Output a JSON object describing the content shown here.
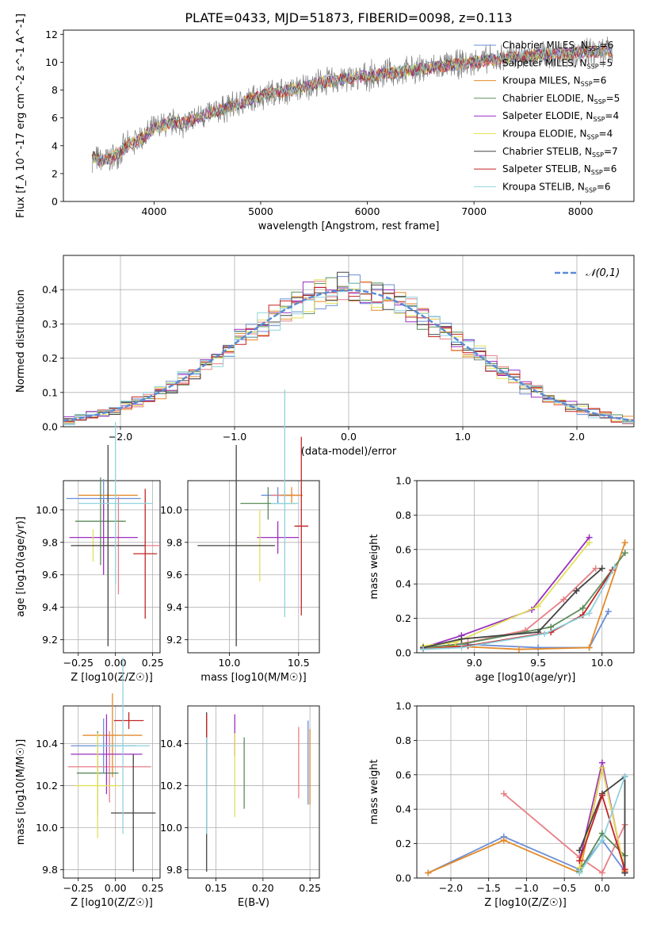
{
  "figure": {
    "title": "PLATE=0433, MJD=51873, FIBERID=0098, z=0.113"
  },
  "models": [
    {
      "name": "Chabrier MILES",
      "nssp": "6",
      "color": "#6a8fd6"
    },
    {
      "name": "Salpeter MILES",
      "nssp": "5",
      "color": "#e87f86"
    },
    {
      "name": "Kroupa MILES",
      "nssp": "6",
      "color": "#e38a2a"
    },
    {
      "name": "Chabrier ELODIE",
      "nssp": "5",
      "color": "#5b8c5a"
    },
    {
      "name": "Salpeter ELODIE",
      "nssp": "4",
      "color": "#9b2fbf"
    },
    {
      "name": "Kroupa ELODIE",
      "nssp": "4",
      "color": "#e2e05a"
    },
    {
      "name": "Chabrier STELIB",
      "nssp": "7",
      "color": "#444444"
    },
    {
      "name": "Salpeter STELIB",
      "nssp": "6",
      "color": "#c42525"
    },
    {
      "name": "Kroupa STELIB",
      "nssp": "6",
      "color": "#8fd3de"
    }
  ],
  "chart_data": [
    {
      "type": "line",
      "id": "spectrum",
      "xlabel": "wavelength [Angstrom, rest frame]",
      "ylabel": "Flux [f_λ 10^-17 erg cm^-2 s^-1 A^-1]",
      "xlim": [
        3150,
        8500
      ],
      "ylim": [
        0,
        12.3
      ],
      "xticks": [
        4000,
        5000,
        6000,
        7000,
        8000
      ],
      "yticks": [
        0,
        2,
        4,
        6,
        8,
        10,
        12
      ],
      "data_range": [
        3420,
        8300
      ],
      "model_points": [
        [
          3420,
          3.2
        ],
        [
          3500,
          2.9
        ],
        [
          3600,
          3.1
        ],
        [
          3700,
          3.7
        ],
        [
          3800,
          4.2
        ],
        [
          3900,
          4.6
        ],
        [
          4000,
          5.2
        ],
        [
          4100,
          5.5
        ],
        [
          4200,
          5.7
        ],
        [
          4300,
          5.6
        ],
        [
          4400,
          6.0
        ],
        [
          4500,
          6.3
        ],
        [
          4600,
          6.5
        ],
        [
          4700,
          6.8
        ],
        [
          4800,
          7.0
        ],
        [
          4900,
          7.3
        ],
        [
          5000,
          7.6
        ],
        [
          5100,
          7.8
        ],
        [
          5200,
          7.9
        ],
        [
          5300,
          8.0
        ],
        [
          5400,
          8.2
        ],
        [
          5500,
          8.4
        ],
        [
          5600,
          8.6
        ],
        [
          5700,
          8.7
        ],
        [
          5800,
          8.8
        ],
        [
          5900,
          8.9
        ],
        [
          6000,
          9.0
        ],
        [
          6100,
          9.1
        ],
        [
          6200,
          9.2
        ],
        [
          6300,
          9.3
        ],
        [
          6400,
          9.4
        ],
        [
          6500,
          9.5
        ],
        [
          6600,
          9.6
        ],
        [
          6700,
          9.7
        ],
        [
          6800,
          9.8
        ],
        [
          6900,
          9.9
        ],
        [
          7000,
          10.0
        ],
        [
          7200,
          10.2
        ],
        [
          7400,
          10.4
        ],
        [
          7600,
          10.5
        ],
        [
          7800,
          10.6
        ],
        [
          8000,
          10.7
        ],
        [
          8300,
          10.8
        ]
      ],
      "grid": false,
      "legend": "right"
    },
    {
      "type": "bar",
      "id": "residuals",
      "xlabel": "(data-model)/error",
      "ylabel": "Normed distribution",
      "xlim": [
        -2.5,
        2.5
      ],
      "ylim": [
        0,
        0.5
      ],
      "xticks": [
        -2,
        -1,
        0,
        1,
        2
      ],
      "yticks": [
        0.0,
        0.1,
        0.2,
        0.3,
        0.4
      ],
      "bin_width": 0.1,
      "normal_label": "𝒩(0,1)",
      "grid": true,
      "legend": "top-right"
    },
    {
      "type": "scatter",
      "id": "age-vs-Z",
      "xlabel": "Z [log10(Z/Z☉)]",
      "ylabel": "age [log10(age/yr)]",
      "xlim": [
        -0.35,
        0.3
      ],
      "ylim": [
        9.12,
        10.18
      ],
      "xticks": [
        -0.25,
        0.0,
        0.25
      ],
      "yticks": [
        9.2,
        9.4,
        9.6,
        9.8,
        10.0
      ],
      "points": [
        {
          "x": -0.08,
          "y": 10.07,
          "xerr": 0.25,
          "yerr": 0.12
        },
        {
          "x": 0.02,
          "y": 9.78,
          "xerr": 0.28,
          "yerr": 0.3
        },
        {
          "x": -0.05,
          "y": 10.09,
          "xerr": 0.2,
          "yerr": 0.08
        },
        {
          "x": -0.1,
          "y": 9.93,
          "xerr": 0.17,
          "yerr": 0.27
        },
        {
          "x": -0.08,
          "y": 9.83,
          "xerr": 0.23,
          "yerr": 0.23
        },
        {
          "x": -0.15,
          "y": 9.78,
          "xerr": 0.12,
          "yerr": 0.1
        },
        {
          "x": -0.05,
          "y": 9.78,
          "xerr": 0.25,
          "yerr": 0.62
        },
        {
          "x": 0.2,
          "y": 9.73,
          "xerr": 0.08,
          "yerr": 0.4
        },
        {
          "x": 0.0,
          "y": 10.04,
          "xerr": 0.25,
          "yerr": 0.5
        }
      ]
    },
    {
      "type": "scatter",
      "id": "age-vs-mass",
      "xlabel": "mass [log10(M/M☉)]",
      "ylabel": "",
      "xlim": [
        9.7,
        10.65
      ],
      "ylim": [
        9.12,
        10.18
      ],
      "xticks": [
        10.0,
        10.5
      ],
      "yticks": [
        9.2,
        9.4,
        9.6,
        9.8,
        10.0
      ],
      "points": [
        {
          "x": 10.35,
          "y": 10.09,
          "xerr": 0.12,
          "yerr": 0.05
        },
        {
          "x": 10.4,
          "y": 10.09,
          "xerr": 0.1,
          "yerr": 0.05
        },
        {
          "x": 10.45,
          "y": 10.09,
          "xerr": 0.08,
          "yerr": 0.05
        },
        {
          "x": 10.28,
          "y": 10.04,
          "xerr": 0.2,
          "yerr": 0.1
        },
        {
          "x": 10.35,
          "y": 9.83,
          "xerr": 0.15,
          "yerr": 0.1
        },
        {
          "x": 10.22,
          "y": 9.78,
          "xerr": 0.1,
          "yerr": 0.22
        },
        {
          "x": 10.05,
          "y": 9.78,
          "xerr": 0.28,
          "yerr": 0.62
        },
        {
          "x": 10.52,
          "y": 9.9,
          "xerr": 0.05,
          "yerr": 0.55
        },
        {
          "x": 10.4,
          "y": 10.04,
          "xerr": 0.1,
          "yerr": 0.7
        }
      ]
    },
    {
      "type": "line",
      "id": "massweight-vs-age",
      "xlabel": "age [log10(age/yr)]",
      "ylabel": "mass weight",
      "xlim": [
        8.55,
        10.25
      ],
      "ylim": [
        0,
        1.0
      ],
      "xticks": [
        9.0,
        9.5,
        10.0
      ],
      "yticks": [
        0.0,
        0.2,
        0.4,
        0.6,
        0.8,
        1.0
      ],
      "series": [
        {
          "x": [
            8.6,
            8.9,
            9.5,
            9.9,
            10.05
          ],
          "y": [
            0.03,
            0.05,
            0.03,
            0.03,
            0.24
          ]
        },
        {
          "x": [
            8.6,
            8.95,
            9.4,
            9.7,
            9.95
          ],
          "y": [
            0.02,
            0.06,
            0.13,
            0.31,
            0.49
          ]
        },
        {
          "x": [
            8.6,
            8.8,
            9.35,
            9.9,
            10.18
          ],
          "y": [
            0.03,
            0.04,
            0.02,
            0.03,
            0.64
          ]
        },
        {
          "x": [
            8.6,
            8.9,
            9.6,
            9.85,
            10.18
          ],
          "y": [
            0.03,
            0.05,
            0.15,
            0.26,
            0.58
          ]
        },
        {
          "x": [
            8.6,
            8.9,
            9.45,
            9.9
          ],
          "y": [
            0.03,
            0.1,
            0.25,
            0.67
          ]
        },
        {
          "x": [
            8.6,
            8.85,
            9.5,
            9.9
          ],
          "y": [
            0.04,
            0.06,
            0.27,
            0.64
          ]
        },
        {
          "x": [
            8.6,
            8.9,
            9.5,
            9.8,
            10.0
          ],
          "y": [
            0.03,
            0.08,
            0.12,
            0.36,
            0.49
          ]
        },
        {
          "x": [
            8.6,
            8.95,
            9.6,
            9.85,
            10.08
          ],
          "y": [
            0.02,
            0.04,
            0.12,
            0.22,
            0.48
          ]
        },
        {
          "x": [
            8.6,
            8.9,
            9.55,
            9.9,
            10.1
          ],
          "y": [
            0.02,
            0.03,
            0.11,
            0.23,
            0.5
          ]
        }
      ]
    },
    {
      "type": "scatter",
      "id": "mass-vs-Z",
      "xlabel": "Z [log10(Z/Z☉)]",
      "ylabel": "mass [log10(M/M☉)]",
      "xlim": [
        -0.35,
        0.3
      ],
      "ylim": [
        9.76,
        10.58
      ],
      "xticks": [
        -0.25,
        0.0,
        0.25
      ],
      "yticks": [
        9.8,
        10.0,
        10.2,
        10.4
      ],
      "points": [
        {
          "x": -0.08,
          "y": 10.39,
          "xerr": 0.22,
          "yerr": 0.13
        },
        {
          "x": -0.04,
          "y": 10.29,
          "xerr": 0.28,
          "yerr": 0.17
        },
        {
          "x": -0.02,
          "y": 10.44,
          "xerr": 0.2,
          "yerr": 0.2
        },
        {
          "x": -0.12,
          "y": 10.26,
          "xerr": 0.14,
          "yerr": 0.2
        },
        {
          "x": -0.06,
          "y": 10.35,
          "xerr": 0.24,
          "yerr": 0.19
        },
        {
          "x": -0.12,
          "y": 10.2,
          "xerr": 0.15,
          "yerr": 0.25
        },
        {
          "x": 0.12,
          "y": 10.07,
          "xerr": 0.15,
          "yerr": 0.28
        },
        {
          "x": 0.09,
          "y": 10.51,
          "xerr": 0.1,
          "yerr": 0.04
        },
        {
          "x": 0.05,
          "y": 10.39,
          "xerr": 0.18,
          "yerr": 0.42
        }
      ]
    },
    {
      "type": "scatter",
      "id": "mass-vs-ebv",
      "xlabel": "E(B-V)",
      "ylabel": "",
      "xlim": [
        0.12,
        0.26
      ],
      "ylim": [
        9.76,
        10.58
      ],
      "xticks": [
        0.15,
        0.2,
        0.25
      ],
      "yticks": [
        9.8,
        10.0,
        10.2,
        10.4
      ],
      "points": [
        {
          "x": 0.248,
          "y": 10.31,
          "yerr": 0.2
        },
        {
          "x": 0.238,
          "y": 10.31,
          "yerr": 0.17
        },
        {
          "x": 0.25,
          "y": 10.29,
          "yerr": 0.18
        },
        {
          "x": 0.18,
          "y": 10.26,
          "yerr": 0.17
        },
        {
          "x": 0.17,
          "y": 10.44,
          "yerr": 0.1
        },
        {
          "x": 0.17,
          "y": 10.25,
          "yerr": 0.2
        },
        {
          "x": 0.14,
          "y": 10.17,
          "yerr": 0.38
        },
        {
          "x": 0.14,
          "y": 10.44,
          "yerr": 0.1
        },
        {
          "x": 0.14,
          "y": 10.2,
          "yerr": 0.23
        }
      ]
    },
    {
      "type": "line",
      "id": "massweight-vs-Z",
      "xlabel": "Z [log10(Z/Z☉)]",
      "ylabel": "mass weight",
      "xlim": [
        -2.45,
        0.42
      ],
      "ylim": [
        0,
        1.0
      ],
      "xticks": [
        -2.0,
        -1.5,
        -1.0,
        -0.5,
        0.0
      ],
      "yticks": [
        0.0,
        0.2,
        0.4,
        0.6,
        0.8,
        1.0
      ],
      "series": [
        {
          "x": [
            -2.3,
            -1.3,
            -0.3,
            0.0,
            0.3
          ],
          "y": [
            0.03,
            0.24,
            0.05,
            0.22,
            0.04
          ]
        },
        {
          "x": [
            -1.3,
            -0.3,
            0.0,
            0.3,
            0.3
          ],
          "y": [
            0.49,
            0.12,
            0.03,
            0.31,
            0.04
          ]
        },
        {
          "x": [
            -2.3,
            -1.3,
            -0.3,
            0.0,
            0.3
          ],
          "y": [
            0.03,
            0.22,
            0.03,
            0.64,
            0.04
          ]
        },
        {
          "x": [
            -0.3,
            0.0,
            0.3,
            0.3
          ],
          "y": [
            0.04,
            0.26,
            0.13,
            0.03
          ]
        },
        {
          "x": [
            -0.3,
            0.0,
            0.3
          ],
          "y": [
            0.1,
            0.67,
            0.03
          ]
        },
        {
          "x": [
            -0.3,
            0.0,
            0.3
          ],
          "y": [
            0.06,
            0.64,
            0.05
          ]
        },
        {
          "x": [
            -0.3,
            0.0,
            0.3,
            0.3
          ],
          "y": [
            0.16,
            0.49,
            0.59,
            0.03
          ]
        },
        {
          "x": [
            -0.3,
            0.0,
            0.3
          ],
          "y": [
            0.1,
            0.48,
            0.05
          ]
        },
        {
          "x": [
            -0.3,
            0.0,
            0.3
          ],
          "y": [
            0.03,
            0.22,
            0.59
          ]
        }
      ]
    }
  ]
}
